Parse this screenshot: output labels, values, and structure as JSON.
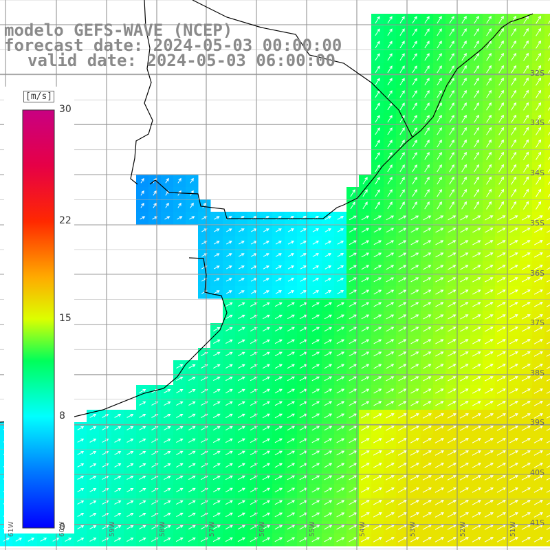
{
  "title": {
    "line1": "modelo GEFS-WAVE (NCEP)",
    "line2": "forecast date: 2024-05-03 00:00:00",
    "line3": "valid date: 2024-05-03 06:00:00"
  },
  "colorbar": {
    "unit": "[m/s]",
    "ticks": [
      {
        "value": 30,
        "label": "30"
      },
      {
        "value": 22,
        "label": "22"
      },
      {
        "value": 15,
        "label": "15"
      },
      {
        "value": 8,
        "label": "8"
      },
      {
        "value": 0,
        "label": "0"
      }
    ],
    "range": [
      0,
      30
    ]
  },
  "map": {
    "variable": "wind speed and direction",
    "lat_labels": [
      "32S",
      "33S",
      "34S",
      "35S",
      "36S",
      "37S",
      "38S",
      "39S",
      "40S",
      "41S"
    ],
    "lon_labels": [
      "61W",
      "60W",
      "59W",
      "58W",
      "57W",
      "56W",
      "55W",
      "54W",
      "53W",
      "52W",
      "51W"
    ],
    "colors": {
      "land": "#ffffff",
      "coast": "#000000",
      "grid": "#888888",
      "arrow": "#ffffff"
    }
  }
}
